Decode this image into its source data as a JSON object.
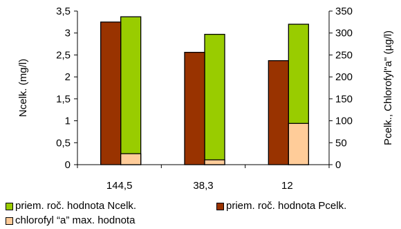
{
  "chart_data": {
    "type": "bar",
    "categories": [
      "144,5",
      "38,3",
      "12"
    ],
    "left_axis": {
      "label": "Ncelk. (mg/l)",
      "ylim": [
        0,
        3.5
      ],
      "ticks": [
        "0",
        "0,5",
        "1",
        "1,5",
        "2",
        "2,5",
        "3",
        "3,5"
      ]
    },
    "right_axis": {
      "label": "Pcelk., Chlorofyl\"a\" (µg/l)",
      "ylim": [
        0,
        350
      ],
      "ticks": [
        "0",
        "50",
        "100",
        "150",
        "200",
        "250",
        "300",
        "350"
      ]
    },
    "series": [
      {
        "name": "priem. roč. hodnota Ncelk.",
        "axis": "left",
        "color": "#99CC00",
        "values": [
          3.37,
          2.97,
          3.2
        ]
      },
      {
        "name": "priem. roč. hodnota Pcelk.",
        "axis": "right",
        "color": "#993300",
        "values": [
          325,
          256,
          237
        ]
      },
      {
        "name": "chlorofyl “a” max. hodnota",
        "axis": "right",
        "color": "#FFCC99",
        "values": [
          25,
          11,
          94
        ]
      }
    ],
    "grid": false,
    "legend_position": "bottom"
  }
}
